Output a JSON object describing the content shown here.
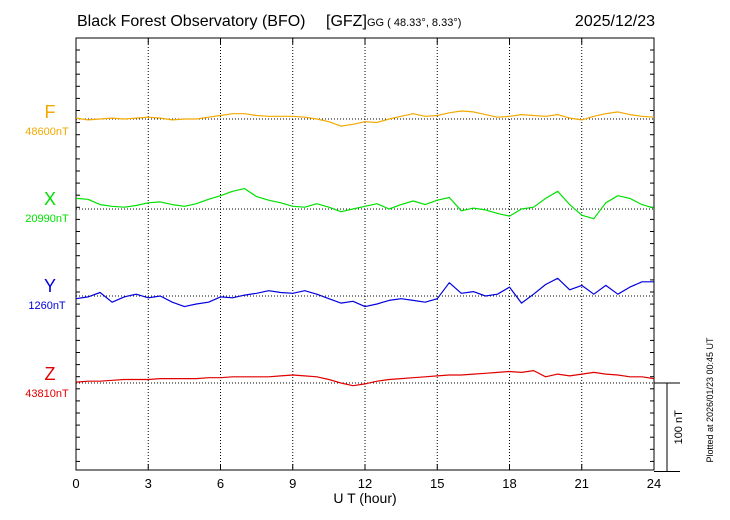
{
  "chart_data": {
    "type": "line",
    "title": "Black Forest Observatory (BFO)",
    "institute": "[GFZ]",
    "coords_label": "GG ( 48.33°,   8.33°)",
    "date": "2025/12/23",
    "xlabel": "U T (hour)",
    "xlim": [
      0,
      24
    ],
    "x_ticks": [
      "0",
      "3",
      "6",
      "9",
      "12",
      "15",
      "18",
      "21",
      "24"
    ],
    "scale_label": "100 nT",
    "scale_nT": 100,
    "plotted_note": "Plotted at 2026/01/23 00:45 UT",
    "grid": true,
    "x": [
      0,
      0.5,
      1,
      1.5,
      2,
      2.5,
      3,
      3.5,
      4,
      4.5,
      5,
      5.5,
      6,
      6.5,
      7,
      7.5,
      8,
      8.5,
      9,
      9.5,
      10,
      10.5,
      11,
      11.5,
      12,
      12.5,
      13,
      13.5,
      14,
      14.5,
      15,
      15.5,
      16,
      16.5,
      17,
      17.5,
      18,
      18.5,
      19,
      19.5,
      20,
      20.5,
      21,
      21.5,
      22,
      22.5,
      23,
      23.5,
      24
    ],
    "series": [
      {
        "name": "F",
        "baseline_label": "48600nT",
        "color": "#f2a900",
        "values": [
          48601,
          48599,
          48600,
          48601,
          48600,
          48601,
          48602,
          48601,
          48599,
          48600,
          48600,
          48602,
          48604,
          48606,
          48606,
          48604,
          48603,
          48603,
          48603,
          48602,
          48600,
          48597,
          48592,
          48594,
          48597,
          48596,
          48600,
          48603,
          48606,
          48603,
          48604,
          48607,
          48609,
          48608,
          48605,
          48602,
          48603,
          48605,
          48604,
          48603,
          48605,
          48601,
          48599,
          48603,
          48606,
          48608,
          48605,
          48603,
          48602
        ]
      },
      {
        "name": "X",
        "baseline_label": "20990nT",
        "color": "#00e000",
        "values": [
          21002,
          21001,
          20995,
          20993,
          20992,
          20994,
          20997,
          20998,
          20995,
          20993,
          20996,
          21001,
          21005,
          21010,
          21013,
          21004,
          21000,
          20997,
          20993,
          20992,
          20996,
          20992,
          20987,
          20990,
          20993,
          20996,
          20990,
          20995,
          20999,
          20995,
          21000,
          21003,
          20988,
          20991,
          20989,
          20985,
          20982,
          20990,
          20992,
          21002,
          21010,
          20995,
          20983,
          20979,
          20997,
          21005,
          21002,
          20995,
          20991
        ]
      },
      {
        "name": "Y",
        "baseline_label": "1260nT",
        "color": "#0000e0",
        "values": [
          1257,
          1259,
          1264,
          1253,
          1259,
          1262,
          1258,
          1260,
          1253,
          1248,
          1251,
          1253,
          1259,
          1258,
          1261,
          1263,
          1266,
          1264,
          1263,
          1266,
          1262,
          1257,
          1252,
          1254,
          1248,
          1251,
          1255,
          1257,
          1255,
          1253,
          1257,
          1275,
          1263,
          1265,
          1260,
          1262,
          1270,
          1252,
          1262,
          1273,
          1280,
          1267,
          1272,
          1262,
          1272,
          1262,
          1270,
          1276,
          1276
        ]
      },
      {
        "name": "Z",
        "baseline_label": "43810nT",
        "color": "#e00000",
        "values": [
          43811,
          43812,
          43812,
          43813,
          43814,
          43814,
          43814,
          43815,
          43815,
          43815,
          43815,
          43816,
          43816,
          43817,
          43817,
          43817,
          43817,
          43818,
          43819,
          43818,
          43817,
          43814,
          43810,
          43807,
          43809,
          43812,
          43814,
          43815,
          43816,
          43817,
          43818,
          43819,
          43819,
          43820,
          43821,
          43822,
          43823,
          43822,
          43824,
          43817,
          43820,
          43818,
          43820,
          43822,
          43820,
          43819,
          43817,
          43817,
          43815
        ]
      }
    ]
  }
}
